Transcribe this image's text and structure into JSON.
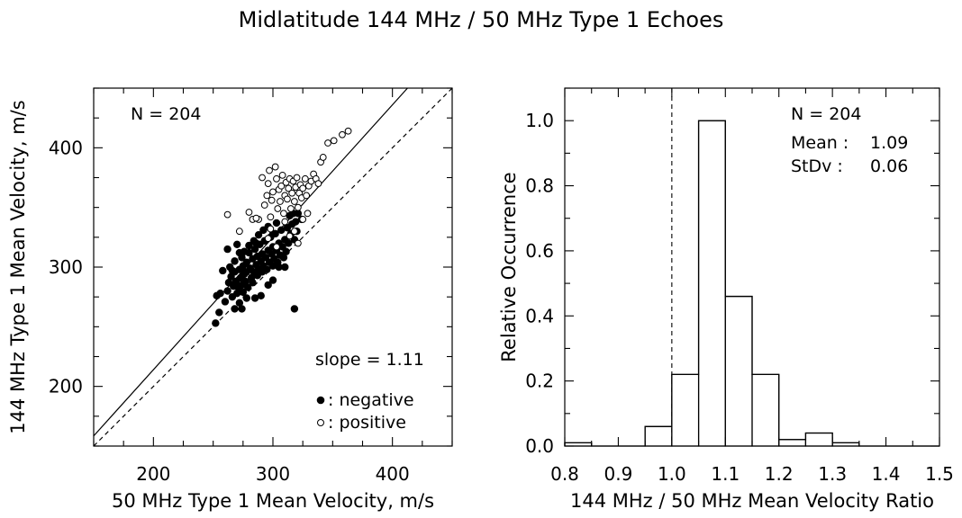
{
  "figure": {
    "title": "Midlatitude 144 MHz / 50 MHz Type 1 Echoes"
  },
  "chart_data": [
    {
      "type": "scatter",
      "xlabel": "50 MHz Type 1 Mean Velocity, m/s",
      "ylabel": "144 MHz Type 1 Mean Velocity, m/s",
      "xlim": [
        150,
        450
      ],
      "ylim": [
        150,
        450
      ],
      "x_ticks": [
        200,
        300,
        400
      ],
      "y_ticks": [
        200,
        300,
        400
      ],
      "grid": false,
      "annotations": {
        "n": "N = 204",
        "slope": "slope = 1.11"
      },
      "legend": {
        "placement": "bottom-right",
        "entries": [
          {
            "symbol": "filled-circle",
            "label": ": negative"
          },
          {
            "symbol": "open-circle",
            "label": ": positive"
          }
        ]
      },
      "reference_lines": [
        {
          "style": "solid",
          "slope": 1.11,
          "intercept": -8,
          "label": "fit"
        },
        {
          "style": "dashed",
          "slope": 1.0,
          "intercept": 0,
          "label": "one-to-one"
        }
      ],
      "series": [
        {
          "name": "negative",
          "marker": "filled",
          "points": [
            [
              252,
              253
            ],
            [
              255,
              262
            ],
            [
              253,
              276
            ],
            [
              256,
              278
            ],
            [
              258,
              297
            ],
            [
              260,
              271
            ],
            [
              262,
              280
            ],
            [
              263,
              287
            ],
            [
              264,
              300
            ],
            [
              265,
              292
            ],
            [
              266,
              275
            ],
            [
              267,
              284
            ],
            [
              268,
              296
            ],
            [
              268,
              305
            ],
            [
              269,
              288
            ],
            [
              270,
              278
            ],
            [
              271,
              283
            ],
            [
              272,
              298
            ],
            [
              272,
              312
            ],
            [
              273,
              291
            ],
            [
              274,
              285
            ],
            [
              275,
              301
            ],
            [
              275,
              279
            ],
            [
              276,
              294
            ],
            [
              277,
              288
            ],
            [
              278,
              304
            ],
            [
              278,
              296
            ],
            [
              279,
              283
            ],
            [
              280,
              312
            ],
            [
              281,
              299
            ],
            [
              282,
              291
            ],
            [
              283,
              307
            ],
            [
              283,
              287
            ],
            [
              284,
              296
            ],
            [
              285,
              315
            ],
            [
              286,
              302
            ],
            [
              287,
              293
            ],
            [
              287,
              309
            ],
            [
              288,
              298
            ],
            [
              289,
              319
            ],
            [
              290,
              305
            ],
            [
              291,
              296
            ],
            [
              291,
              311
            ],
            [
              292,
              301
            ],
            [
              293,
              322
            ],
            [
              294,
              308
            ],
            [
              295,
              298
            ],
            [
              296,
              314
            ],
            [
              297,
              304
            ],
            [
              298,
              325
            ],
            [
              299,
              311
            ],
            [
              300,
              301
            ],
            [
              300,
              317
            ],
            [
              301,
              307
            ],
            [
              302,
              328
            ],
            [
              303,
              314
            ],
            [
              304,
              304
            ],
            [
              305,
              320
            ],
            [
              306,
              310
            ],
            [
              307,
              331
            ],
            [
              308,
              317
            ],
            [
              309,
              308
            ],
            [
              310,
              323
            ],
            [
              311,
              313
            ],
            [
              312,
              333
            ],
            [
              313,
              320
            ],
            [
              314,
              343
            ],
            [
              315,
              328
            ],
            [
              316,
              336
            ],
            [
              317,
              345
            ],
            [
              318,
              323
            ],
            [
              319,
              338
            ],
            [
              320,
              330
            ],
            [
              321,
              345
            ],
            [
              324,
              340
            ],
            [
              262,
              315
            ],
            [
              266,
              297
            ],
            [
              270,
              319
            ],
            [
              274,
              308
            ],
            [
              276,
              313
            ],
            [
              280,
              318
            ],
            [
              284,
              322
            ],
            [
              288,
              327
            ],
            [
              292,
              331
            ],
            [
              296,
              334
            ],
            [
              300,
              289
            ],
            [
              296,
              285
            ],
            [
              285,
              274
            ],
            [
              290,
              276
            ],
            [
              278,
              274
            ],
            [
              272,
              270
            ],
            [
              268,
              265
            ],
            [
              274,
              265
            ],
            [
              318,
              265
            ],
            [
              280,
              318
            ],
            [
              286,
              320
            ],
            [
              305,
              300
            ],
            [
              310,
              300
            ],
            [
              300,
              328
            ],
            [
              303,
              337
            ]
          ]
        },
        {
          "name": "positive",
          "marker": "open",
          "points": [
            [
              262,
              344
            ],
            [
              272,
              330
            ],
            [
              280,
              346
            ],
            [
              283,
              340
            ],
            [
              288,
              340
            ],
            [
              291,
              375
            ],
            [
              293,
              352
            ],
            [
              295,
              360
            ],
            [
              296,
              370
            ],
            [
              297,
              381
            ],
            [
              298,
              342
            ],
            [
              299,
              356
            ],
            [
              300,
              363
            ],
            [
              302,
              384
            ],
            [
              303,
              374
            ],
            [
              304,
              349
            ],
            [
              305,
              365
            ],
            [
              306,
              355
            ],
            [
              307,
              368
            ],
            [
              308,
              377
            ],
            [
              309,
              345
            ],
            [
              310,
              360
            ],
            [
              311,
              371
            ],
            [
              312,
              357
            ],
            [
              313,
              366
            ],
            [
              314,
              374
            ],
            [
              315,
              349
            ],
            [
              316,
              362
            ],
            [
              317,
              372
            ],
            [
              318,
              355
            ],
            [
              319,
              367
            ],
            [
              320,
              375
            ],
            [
              321,
              350
            ],
            [
              322,
              362
            ],
            [
              323,
              369
            ],
            [
              324,
              358
            ],
            [
              325,
              366
            ],
            [
              327,
              374
            ],
            [
              328,
              360
            ],
            [
              330,
              368
            ],
            [
              332,
              372
            ],
            [
              334,
              378
            ],
            [
              336,
              374
            ],
            [
              338,
              370
            ],
            [
              340,
              388
            ],
            [
              342,
              392
            ],
            [
              346,
              404
            ],
            [
              351,
              406
            ],
            [
              358,
              411
            ],
            [
              363,
              414
            ],
            [
              286,
              341
            ],
            [
              296,
              324
            ],
            [
              303,
              317
            ],
            [
              310,
              338
            ],
            [
              314,
              326
            ],
            [
              318,
              330
            ],
            [
              321,
              320
            ],
            [
              325,
              340
            ],
            [
              329,
              345
            ],
            [
              298,
              332
            ]
          ]
        }
      ]
    },
    {
      "type": "bar",
      "histogram": true,
      "xlabel": "144 MHz / 50 MHz Mean Velocity Ratio",
      "ylabel": "Relative Occurrence",
      "xlim": [
        0.8,
        1.5
      ],
      "ylim": [
        0.0,
        1.1
      ],
      "x_ticks": [
        "0.8",
        "0.9",
        "1.0",
        "1.1",
        "1.2",
        "1.3",
        "1.4",
        "1.5"
      ],
      "y_ticks": [
        "0.0",
        "0.2",
        "0.4",
        "0.6",
        "0.8",
        "1.0"
      ],
      "grid": false,
      "reference_lines": [
        {
          "style": "dashed",
          "x": 1.0
        }
      ],
      "bin_edges": [
        0.8,
        0.85,
        0.9,
        0.95,
        1.0,
        1.05,
        1.1,
        1.15,
        1.2,
        1.25,
        1.3,
        1.35,
        1.4,
        1.45,
        1.5
      ],
      "values": [
        0.01,
        0.0,
        0.0,
        0.06,
        0.22,
        1.0,
        0.46,
        0.22,
        0.02,
        0.04,
        0.01,
        0.0,
        0.0,
        0.0
      ],
      "annotations": {
        "n": "N = 204",
        "mean_label": "Mean :",
        "mean_value": "1.09",
        "stdv_label": "StDv :",
        "stdv_value": "0.06"
      }
    }
  ]
}
